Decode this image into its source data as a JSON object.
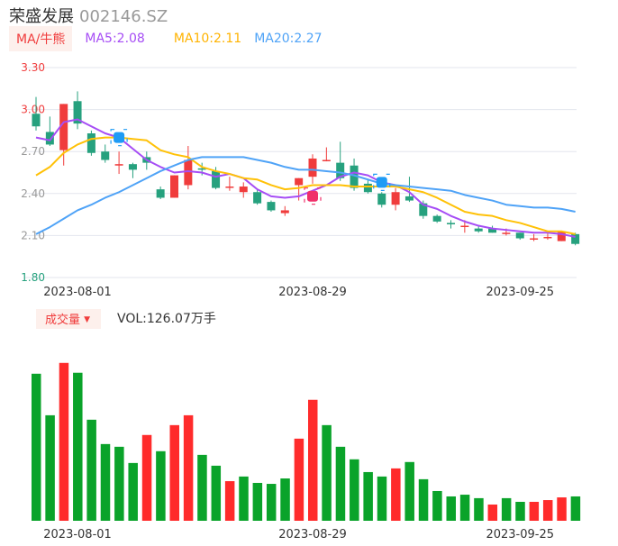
{
  "header": {
    "name": "荣盛发展",
    "code": "002146.SZ"
  },
  "legend": {
    "tag": "MA/牛熊",
    "ma5": "MA5:2.08",
    "ma10": "MA10:2.11",
    "ma20": "MA20:2.27"
  },
  "volume_header": {
    "tag": "成交量",
    "arrow": "▼",
    "label": "VOL:126.07万手"
  },
  "colors": {
    "up": "#f03c3c",
    "down": "#26a17e",
    "vol_up": "#ff2b2b",
    "vol_down": "#0aa32a",
    "ma5": "#a64df5",
    "ma10": "#ffc107",
    "ma20": "#4fa3f7",
    "grid": "#e3e6ee"
  },
  "chart_data": [
    {
      "type": "candlestick",
      "title": "荣盛发展 002146.SZ",
      "y_ticks": [
        "3.30",
        "3.00",
        "2.70",
        "2.40",
        "2.10",
        "1.80"
      ],
      "ylim": [
        1.8,
        3.3
      ],
      "x_ticks": [
        {
          "index": 3,
          "label": "2023-08-01"
        },
        {
          "index": 20,
          "label": "2023-08-29"
        },
        {
          "index": 35,
          "label": "2023-09-25"
        }
      ],
      "ohlc": [
        [
          2.97,
          3.09,
          2.85,
          2.88
        ],
        [
          2.84,
          2.95,
          2.74,
          2.75
        ],
        [
          2.71,
          3.04,
          2.6,
          3.04
        ],
        [
          3.06,
          3.13,
          2.86,
          2.9
        ],
        [
          2.83,
          2.85,
          2.67,
          2.69
        ],
        [
          2.7,
          2.75,
          2.62,
          2.64
        ],
        [
          2.6,
          2.7,
          2.54,
          2.61
        ],
        [
          2.61,
          2.62,
          2.51,
          2.57
        ],
        [
          2.66,
          2.7,
          2.57,
          2.62
        ],
        [
          2.43,
          2.45,
          2.36,
          2.37
        ],
        [
          2.37,
          2.53,
          2.37,
          2.53
        ],
        [
          2.46,
          2.74,
          2.43,
          2.64
        ],
        [
          2.58,
          2.62,
          2.53,
          2.57
        ],
        [
          2.56,
          2.59,
          2.43,
          2.44
        ],
        [
          2.45,
          2.52,
          2.42,
          2.45
        ],
        [
          2.41,
          2.48,
          2.37,
          2.45
        ],
        [
          2.41,
          2.43,
          2.32,
          2.33
        ],
        [
          2.34,
          2.35,
          2.27,
          2.28
        ],
        [
          2.26,
          2.31,
          2.24,
          2.28
        ],
        [
          2.46,
          2.51,
          2.35,
          2.51
        ],
        [
          2.52,
          2.68,
          2.47,
          2.65
        ],
        [
          2.64,
          2.73,
          2.63,
          2.64
        ],
        [
          2.62,
          2.77,
          2.49,
          2.51
        ],
        [
          2.6,
          2.65,
          2.42,
          2.44
        ],
        [
          2.47,
          2.5,
          2.4,
          2.41
        ],
        [
          2.4,
          2.41,
          2.3,
          2.32
        ],
        [
          2.32,
          2.44,
          2.28,
          2.41
        ],
        [
          2.38,
          2.52,
          2.34,
          2.35
        ],
        [
          2.33,
          2.35,
          2.22,
          2.24
        ],
        [
          2.24,
          2.25,
          2.19,
          2.2
        ],
        [
          2.19,
          2.21,
          2.15,
          2.18
        ],
        [
          2.17,
          2.21,
          2.12,
          2.17
        ],
        [
          2.15,
          2.17,
          2.12,
          2.13
        ],
        [
          2.15,
          2.17,
          2.12,
          2.12
        ],
        [
          2.12,
          2.15,
          2.1,
          2.12
        ],
        [
          2.12,
          2.12,
          2.07,
          2.08
        ],
        [
          2.08,
          2.11,
          2.06,
          2.08
        ],
        [
          2.09,
          2.12,
          2.07,
          2.09
        ],
        [
          2.06,
          2.13,
          2.06,
          2.13
        ],
        [
          2.11,
          2.12,
          2.03,
          2.04
        ]
      ],
      "ma5": [
        2.8,
        2.78,
        2.91,
        2.93,
        2.88,
        2.83,
        2.8,
        2.72,
        2.64,
        2.59,
        2.55,
        2.56,
        2.55,
        2.52,
        2.54,
        2.51,
        2.43,
        2.38,
        2.37,
        2.38,
        2.42,
        2.46,
        2.52,
        2.55,
        2.53,
        2.48,
        2.46,
        2.41,
        2.32,
        2.29,
        2.24,
        2.2,
        2.17,
        2.15,
        2.14,
        2.13,
        2.12,
        2.12,
        2.11,
        2.09
      ],
      "ma10": [
        2.53,
        2.59,
        2.69,
        2.75,
        2.79,
        2.8,
        2.8,
        2.79,
        2.78,
        2.71,
        2.68,
        2.66,
        2.59,
        2.56,
        2.54,
        2.51,
        2.5,
        2.46,
        2.43,
        2.44,
        2.46,
        2.46,
        2.46,
        2.45,
        2.45,
        2.45,
        2.45,
        2.43,
        2.41,
        2.37,
        2.32,
        2.27,
        2.25,
        2.24,
        2.21,
        2.19,
        2.16,
        2.13,
        2.13,
        2.11
      ],
      "ma20": [
        2.11,
        2.16,
        2.22,
        2.28,
        2.32,
        2.37,
        2.41,
        2.46,
        2.51,
        2.56,
        2.6,
        2.64,
        2.66,
        2.66,
        2.66,
        2.66,
        2.64,
        2.62,
        2.59,
        2.57,
        2.57,
        2.56,
        2.55,
        2.53,
        2.5,
        2.47,
        2.46,
        2.45,
        2.44,
        2.43,
        2.42,
        2.39,
        2.37,
        2.35,
        2.32,
        2.31,
        2.3,
        2.3,
        2.29,
        2.27
      ],
      "markers": [
        {
          "index": 6,
          "kind": "blue"
        },
        {
          "index": 20,
          "kind": "pink"
        },
        {
          "index": 25,
          "kind": "blue"
        }
      ]
    },
    {
      "type": "bar",
      "title": "成交量",
      "unit": "万手",
      "ylim": [
        0,
        830
      ],
      "values": [
        761,
        546,
        817,
        766,
        523,
        397,
        383,
        299,
        444,
        360,
        495,
        546,
        341,
        285,
        205,
        229,
        196,
        191,
        219,
        425,
        626,
        495,
        383,
        318,
        252,
        229,
        271,
        304,
        215,
        154,
        126,
        135,
        117,
        84,
        117,
        98,
        98,
        107,
        121,
        126.07
      ],
      "up": [
        0,
        0,
        1,
        0,
        0,
        0,
        0,
        0,
        1,
        0,
        1,
        1,
        0,
        0,
        1,
        0,
        0,
        0,
        0,
        1,
        1,
        0,
        0,
        0,
        0,
        0,
        1,
        0,
        0,
        0,
        0,
        0,
        0,
        1,
        0,
        0,
        1,
        1,
        1,
        0
      ]
    }
  ]
}
